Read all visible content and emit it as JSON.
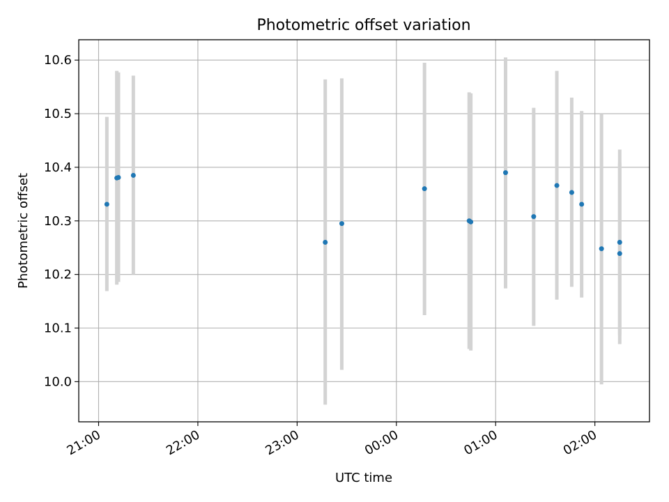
{
  "chart_data": {
    "type": "scatter",
    "title": "Photometric offset variation",
    "xlabel": "UTC time",
    "ylabel": "Photometric offset",
    "grid": true,
    "xlim": [
      "20:48",
      "26:33"
    ],
    "ylim": [
      9.925,
      10.638
    ],
    "x_ticks": [
      {
        "value": "21:00",
        "label": "21:00"
      },
      {
        "value": "22:00",
        "label": "22:00"
      },
      {
        "value": "23:00",
        "label": "23:00"
      },
      {
        "value": "24:00",
        "label": "00:00"
      },
      {
        "value": "25:00",
        "label": "01:00"
      },
      {
        "value": "26:00",
        "label": "02:00"
      }
    ],
    "y_ticks": [
      10.0,
      10.1,
      10.2,
      10.3,
      10.4,
      10.5,
      10.6
    ],
    "y_tick_labels": [
      "10.0",
      "10.1",
      "10.2",
      "10.3",
      "10.4",
      "10.5",
      "10.6"
    ],
    "errorbar_color": "#d3d3d3",
    "marker_color": "#1f77b4",
    "points": [
      {
        "x": "21:05",
        "y": 10.331,
        "ylo": 10.169,
        "yhi": 10.494
      },
      {
        "x": "21:11",
        "y": 10.38,
        "ylo": 10.181,
        "yhi": 10.58
      },
      {
        "x": "21:12",
        "y": 10.381,
        "ylo": 10.186,
        "yhi": 10.577
      },
      {
        "x": "21:21",
        "y": 10.385,
        "ylo": 10.2,
        "yhi": 10.571
      },
      {
        "x": "23:17",
        "y": 10.26,
        "ylo": 9.957,
        "yhi": 10.564
      },
      {
        "x": "23:27",
        "y": 10.295,
        "ylo": 10.022,
        "yhi": 10.566
      },
      {
        "x": "24:17",
        "y": 10.36,
        "ylo": 10.124,
        "yhi": 10.595
      },
      {
        "x": "24:44",
        "y": 10.3,
        "ylo": 10.061,
        "yhi": 10.54
      },
      {
        "x": "24:45",
        "y": 10.298,
        "ylo": 10.058,
        "yhi": 10.538
      },
      {
        "x": "25:06",
        "y": 10.39,
        "ylo": 10.174,
        "yhi": 10.605
      },
      {
        "x": "25:23",
        "y": 10.308,
        "ylo": 10.104,
        "yhi": 10.511
      },
      {
        "x": "25:37",
        "y": 10.366,
        "ylo": 10.153,
        "yhi": 10.58
      },
      {
        "x": "25:46",
        "y": 10.353,
        "ylo": 10.177,
        "yhi": 10.53
      },
      {
        "x": "25:52",
        "y": 10.331,
        "ylo": 10.157,
        "yhi": 10.505
      },
      {
        "x": "26:04",
        "y": 10.248,
        "ylo": 9.995,
        "yhi": 10.5
      },
      {
        "x": "26:15",
        "y": 10.26,
        "ylo": 10.087,
        "yhi": 10.433
      },
      {
        "x": "26:15",
        "y": 10.239,
        "ylo": 10.07,
        "yhi": 10.408
      }
    ]
  }
}
